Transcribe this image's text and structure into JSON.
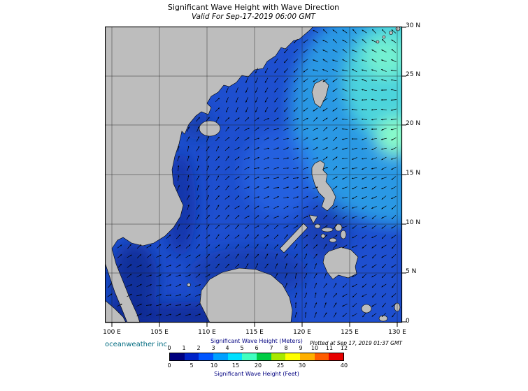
{
  "title": "Significant Wave Height with Wave Direction",
  "subtitle": "Valid For Sep-17-2019 06:00 GMT",
  "map": {
    "lon_ticks": [
      "100 E",
      "105 E",
      "110 E",
      "115 E",
      "120 E",
      "125 E",
      "130 E"
    ],
    "lat_ticks": [
      "30 N",
      "25 N",
      "20 N",
      "15 N",
      "10 N",
      "5 N",
      "0"
    ]
  },
  "footer": {
    "org": "oceanweather inc.",
    "plotted": "Plotted at Sep 17, 2019 01:37 GMT"
  },
  "legend": {
    "meters_label": "Significant Wave Height (Meters)",
    "feet_label": "Significant Wave Height (Feet)",
    "meters_ticks": [
      "0",
      "1",
      "2",
      "3",
      "4",
      "5",
      "6",
      "7",
      "8",
      "9",
      "10",
      "11",
      "12"
    ],
    "feet_ticks": [
      "0",
      "5",
      "10",
      "15",
      "20",
      "25",
      "30",
      "40"
    ],
    "colors": [
      "#00007f",
      "#0022c8",
      "#0055ff",
      "#00a0ff",
      "#00e0ff",
      "#40ffc0",
      "#00cc44",
      "#a8e800",
      "#ffff00",
      "#ffb000",
      "#ff5c00",
      "#e60000"
    ]
  },
  "colors": {
    "land": "#bdbdbd",
    "ocean_base": "#1e4fcf",
    "high_waves_accent": "#80f8d0",
    "caption_navy": "#000080",
    "org_teal": "#006b80"
  },
  "arrows": {
    "spacing": 14,
    "length": 8,
    "color": "#000000"
  }
}
